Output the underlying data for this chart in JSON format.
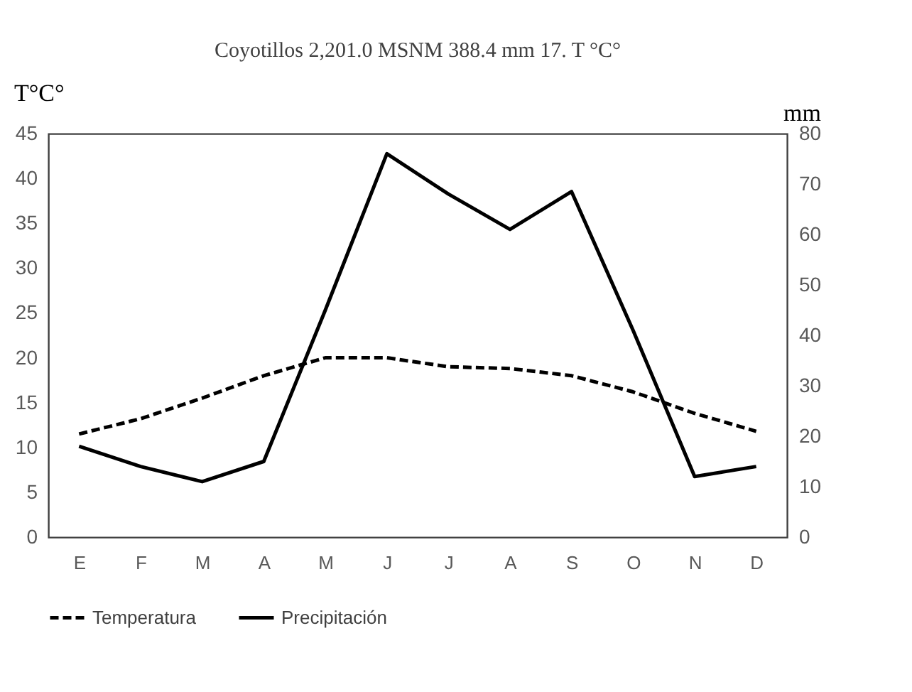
{
  "chart_data": {
    "type": "line",
    "title": "Coyotillos 2,201.0 MSNM 388.4 mm 17. T °C°",
    "ylabel": "T°C°",
    "y2label": "mm",
    "categories": [
      "E",
      "F",
      "M",
      "A",
      "M",
      "J",
      "J",
      "A",
      "S",
      "O",
      "N",
      "D"
    ],
    "series": [
      {
        "name": "Temperatura",
        "color": "#000000",
        "line_style": "dashed",
        "values": [
          11.5,
          13.2,
          15.5,
          18,
          20,
          20,
          19,
          18.8,
          18,
          16.2,
          13.8,
          11.8
        ]
      },
      {
        "name": "Precipitación",
        "color": "#000000",
        "line_style": "solid",
        "axis": "y2",
        "values": [
          18,
          14,
          11,
          15,
          45,
          76,
          68,
          61,
          68.5,
          41,
          12,
          14
        ]
      }
    ],
    "ylim": [
      0,
      45
    ],
    "yticks": [
      0,
      5,
      10,
      15,
      20,
      25,
      30,
      35,
      40,
      45
    ],
    "y2lim": [
      0,
      80
    ],
    "y2ticks": [
      0,
      10,
      20,
      30,
      40,
      50,
      60,
      70,
      80
    ],
    "grid": false,
    "legend": "bottom",
    "marker": "none"
  }
}
